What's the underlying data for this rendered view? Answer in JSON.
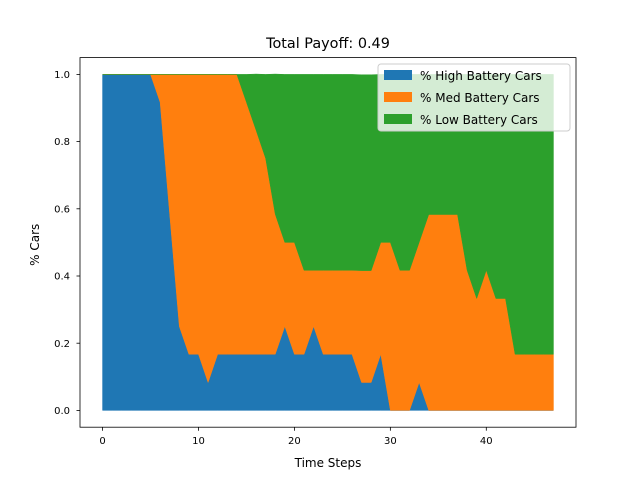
{
  "chart_data": {
    "type": "area",
    "stacked": true,
    "title": "Total Payoff: 0.49",
    "xlabel": "Time Steps",
    "ylabel": "% Cars",
    "xlim": [
      -2.35,
      49.35
    ],
    "ylim": [
      -0.05,
      1.05
    ],
    "xticks": [
      0,
      10,
      20,
      30,
      40
    ],
    "xtick_labels": [
      "0",
      "10",
      "20",
      "30",
      "40"
    ],
    "yticks": [
      0.0,
      0.2,
      0.4,
      0.6,
      0.8,
      1.0
    ],
    "ytick_labels": [
      "0.0",
      "0.2",
      "0.4",
      "0.6",
      "0.8",
      "1.0"
    ],
    "grid": false,
    "legend_position": "top-right",
    "x": [
      0,
      1,
      2,
      3,
      4,
      5,
      6,
      7,
      8,
      9,
      10,
      11,
      12,
      13,
      14,
      15,
      16,
      17,
      18,
      19,
      20,
      21,
      22,
      23,
      24,
      25,
      26,
      27,
      28,
      29,
      30,
      31,
      32,
      33,
      34,
      35,
      36,
      37,
      38,
      39,
      40,
      41,
      42,
      43,
      44,
      45,
      46,
      47
    ],
    "series": [
      {
        "name": "% High Battery Cars",
        "color": "#1f77b4",
        "values": [
          1.0,
          1.0,
          1.0,
          1.0,
          1.0,
          1.0,
          0.917,
          0.583,
          0.25,
          0.167,
          0.167,
          0.083,
          0.167,
          0.167,
          0.167,
          0.167,
          0.167,
          0.167,
          0.167,
          0.25,
          0.167,
          0.167,
          0.25,
          0.167,
          0.167,
          0.167,
          0.167,
          0.083,
          0.083,
          0.167,
          0.0,
          0.0,
          0.0,
          0.083,
          0.0,
          0.0,
          0.0,
          0.0,
          0.0,
          0.0,
          0.0,
          0.0,
          0.0,
          0.0,
          0.0,
          0.0,
          0.0,
          0.0
        ]
      },
      {
        "name": "% Med Battery Cars",
        "color": "#ff7f0e",
        "values": [
          0.0,
          0.0,
          0.0,
          0.0,
          0.0,
          0.0,
          0.083,
          0.417,
          0.75,
          0.833,
          0.833,
          0.917,
          0.833,
          0.833,
          0.833,
          0.75,
          0.667,
          0.583,
          0.417,
          0.25,
          0.333,
          0.25,
          0.167,
          0.25,
          0.25,
          0.25,
          0.25,
          0.333,
          0.333,
          0.333,
          0.5,
          0.417,
          0.417,
          0.417,
          0.583,
          0.583,
          0.583,
          0.583,
          0.417,
          0.333,
          0.417,
          0.333,
          0.333,
          0.167,
          0.167,
          0.167,
          0.167,
          0.167
        ]
      },
      {
        "name": "% Low Battery Cars",
        "color": "#2ca02c",
        "values": [
          0.0,
          0.0,
          0.0,
          0.0,
          0.0,
          0.0,
          0.0,
          0.0,
          0.0,
          0.0,
          0.0,
          0.0,
          0.0,
          0.0,
          0.0,
          0.083,
          0.167,
          0.25,
          0.417,
          0.5,
          0.5,
          0.583,
          0.583,
          0.583,
          0.583,
          0.583,
          0.583,
          0.583,
          0.583,
          0.5,
          0.5,
          0.583,
          0.583,
          0.5,
          0.417,
          0.417,
          0.417,
          0.417,
          0.583,
          0.667,
          0.583,
          0.667,
          0.667,
          0.833,
          0.833,
          0.833,
          0.833,
          0.833
        ]
      }
    ]
  }
}
